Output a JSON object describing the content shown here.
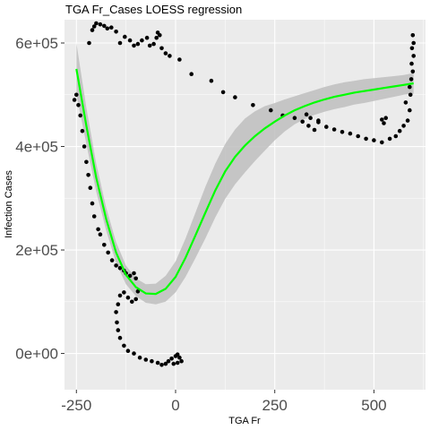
{
  "chart_data": {
    "type": "scatter",
    "title": "TGA Fr_Cases LOESS regression",
    "xlabel": "TGA Fr",
    "ylabel": "Infection Cases",
    "xlim": [
      -280,
      630
    ],
    "ylim": [
      -70000,
      645000
    ],
    "x_ticks": [
      -250,
      0,
      250,
      500
    ],
    "x_tick_labels": [
      "-250",
      "0",
      "250",
      "500"
    ],
    "y_ticks": [
      0,
      200000,
      400000,
      600000
    ],
    "y_tick_labels": [
      "0e+00",
      "2e+05",
      "4e+05",
      "6e+05"
    ],
    "grid": true,
    "colors": {
      "panel": "#ebebeb",
      "grid": "#ffffff",
      "points": "#000000",
      "fit": "#00ff00",
      "band": "#bebebe"
    },
    "points": [
      [
        -218,
        600000
      ],
      [
        -210,
        625000
      ],
      [
        -205,
        632000
      ],
      [
        -200,
        638000
      ],
      [
        -190,
        636000
      ],
      [
        -180,
        633000
      ],
      [
        -172,
        628000
      ],
      [
        -162,
        630000
      ],
      [
        -150,
        622000
      ],
      [
        -140,
        600000
      ],
      [
        -128,
        612000
      ],
      [
        -115,
        605000
      ],
      [
        -105,
        595000
      ],
      [
        -95,
        598000
      ],
      [
        -85,
        605000
      ],
      [
        -72,
        610000
      ],
      [
        -65,
        595000
      ],
      [
        -55,
        598000
      ],
      [
        -48,
        610000
      ],
      [
        -45,
        620000
      ],
      [
        -40,
        615000
      ],
      [
        -35,
        590000
      ],
      [
        -25,
        580000
      ],
      [
        -15,
        575000
      ],
      [
        10,
        568000
      ],
      [
        40,
        540000
      ],
      [
        90,
        527000
      ],
      [
        120,
        505000
      ],
      [
        150,
        495000
      ],
      [
        195,
        480000
      ],
      [
        240,
        470000
      ],
      [
        270,
        460000
      ],
      [
        300,
        455000
      ],
      [
        320,
        448000
      ],
      [
        335,
        440000
      ],
      [
        350,
        432000
      ],
      [
        360,
        450000
      ],
      [
        380,
        438000
      ],
      [
        400,
        433000
      ],
      [
        420,
        428000
      ],
      [
        440,
        425000
      ],
      [
        460,
        420000
      ],
      [
        480,
        415000
      ],
      [
        500,
        412000
      ],
      [
        520,
        408000
      ],
      [
        540,
        415000
      ],
      [
        555,
        420000
      ],
      [
        565,
        430000
      ],
      [
        575,
        440000
      ],
      [
        585,
        450000
      ],
      [
        590,
        470000
      ],
      [
        592,
        500000
      ],
      [
        594,
        530000
      ],
      [
        595,
        560000
      ],
      [
        596,
        590000
      ],
      [
        598,
        615000
      ],
      [
        600,
        600000
      ],
      [
        600,
        575000
      ],
      [
        598,
        545000
      ],
      [
        590,
        515000
      ],
      [
        580,
        485000
      ],
      [
        530,
        455000
      ],
      [
        525,
        445000
      ],
      [
        520,
        452000
      ],
      [
        330,
        462000
      ],
      [
        340,
        455000
      ],
      [
        360,
        447000
      ],
      [
        -255,
        490000
      ],
      [
        -250,
        500000
      ],
      [
        -245,
        480000
      ],
      [
        -240,
        460000
      ],
      [
        -235,
        430000
      ],
      [
        -230,
        400000
      ],
      [
        -225,
        370000
      ],
      [
        -220,
        345000
      ],
      [
        -215,
        320000
      ],
      [
        -210,
        290000
      ],
      [
        -205,
        265000
      ],
      [
        -195,
        240000
      ],
      [
        -190,
        230000
      ],
      [
        -180,
        210000
      ],
      [
        -170,
        195000
      ],
      [
        -160,
        180000
      ],
      [
        -150,
        170000
      ],
      [
        -140,
        165000
      ],
      [
        -130,
        160000
      ],
      [
        -125,
        155000
      ],
      [
        -115,
        150000
      ],
      [
        -105,
        155000
      ],
      [
        -100,
        145000
      ],
      [
        -95,
        120000
      ],
      [
        -100,
        105000
      ],
      [
        -110,
        100000
      ],
      [
        -120,
        108000
      ],
      [
        -130,
        118000
      ],
      [
        -140,
        112000
      ],
      [
        -145,
        95000
      ],
      [
        -150,
        80000
      ],
      [
        -148,
        60000
      ],
      [
        -145,
        45000
      ],
      [
        -140,
        30000
      ],
      [
        -130,
        15000
      ],
      [
        -120,
        5000
      ],
      [
        -105,
        0
      ],
      [
        -90,
        -8000
      ],
      [
        -75,
        -12000
      ],
      [
        -60,
        -15000
      ],
      [
        -45,
        -18000
      ],
      [
        -35,
        -22000
      ],
      [
        -25,
        -20000
      ],
      [
        -18,
        -15000
      ],
      [
        -10,
        -10000
      ],
      [
        0,
        -5000
      ],
      [
        5,
        -2000
      ],
      [
        10,
        -8000
      ],
      [
        15,
        -15000
      ],
      [
        5,
        -18000
      ],
      [
        -5,
        -20000
      ]
    ],
    "fit": [
      [
        -250,
        550000
      ],
      [
        -225,
        440000
      ],
      [
        -200,
        340000
      ],
      [
        -175,
        260000
      ],
      [
        -150,
        195000
      ],
      [
        -125,
        152000
      ],
      [
        -100,
        128000
      ],
      [
        -75,
        116000
      ],
      [
        -50,
        115000
      ],
      [
        -25,
        125000
      ],
      [
        0,
        148000
      ],
      [
        25,
        185000
      ],
      [
        50,
        228000
      ],
      [
        75,
        272000
      ],
      [
        100,
        315000
      ],
      [
        125,
        352000
      ],
      [
        150,
        380000
      ],
      [
        175,
        402000
      ],
      [
        200,
        420000
      ],
      [
        225,
        435000
      ],
      [
        250,
        448000
      ],
      [
        275,
        460000
      ],
      [
        300,
        470000
      ],
      [
        325,
        478000
      ],
      [
        350,
        485000
      ],
      [
        375,
        491000
      ],
      [
        400,
        496000
      ],
      [
        425,
        500000
      ],
      [
        450,
        504000
      ],
      [
        475,
        507000
      ],
      [
        500,
        510000
      ],
      [
        525,
        513000
      ],
      [
        550,
        516000
      ],
      [
        575,
        519000
      ],
      [
        600,
        522000
      ]
    ],
    "band_upper": [
      [
        -250,
        600000
      ],
      [
        -225,
        475000
      ],
      [
        -200,
        367000
      ],
      [
        -175,
        282000
      ],
      [
        -150,
        215000
      ],
      [
        -125,
        170000
      ],
      [
        -100,
        145000
      ],
      [
        -75,
        134000
      ],
      [
        -50,
        135000
      ],
      [
        -25,
        150000
      ],
      [
        0,
        178000
      ],
      [
        25,
        222000
      ],
      [
        50,
        272000
      ],
      [
        75,
        322000
      ],
      [
        100,
        367000
      ],
      [
        125,
        405000
      ],
      [
        150,
        433000
      ],
      [
        175,
        454000
      ],
      [
        200,
        468000
      ],
      [
        225,
        478000
      ],
      [
        250,
        484000
      ],
      [
        275,
        491000
      ],
      [
        300,
        497000
      ],
      [
        325,
        503000
      ],
      [
        350,
        509000
      ],
      [
        375,
        515000
      ],
      [
        400,
        520000
      ],
      [
        425,
        524000
      ],
      [
        450,
        527000
      ],
      [
        475,
        530000
      ],
      [
        500,
        532000
      ],
      [
        525,
        534000
      ],
      [
        550,
        536000
      ],
      [
        575,
        538000
      ],
      [
        600,
        542000
      ]
    ],
    "band_lower": [
      [
        -250,
        500000
      ],
      [
        -225,
        405000
      ],
      [
        -200,
        313000
      ],
      [
        -175,
        238000
      ],
      [
        -150,
        175000
      ],
      [
        -125,
        134000
      ],
      [
        -100,
        111000
      ],
      [
        -75,
        98000
      ],
      [
        -50,
        95000
      ],
      [
        -25,
        100000
      ],
      [
        0,
        118000
      ],
      [
        25,
        148000
      ],
      [
        50,
        184000
      ],
      [
        75,
        222000
      ],
      [
        100,
        263000
      ],
      [
        125,
        299000
      ],
      [
        150,
        327000
      ],
      [
        175,
        350000
      ],
      [
        200,
        372000
      ],
      [
        225,
        392000
      ],
      [
        250,
        412000
      ],
      [
        275,
        429000
      ],
      [
        300,
        443000
      ],
      [
        325,
        453000
      ],
      [
        350,
        461000
      ],
      [
        375,
        467000
      ],
      [
        400,
        472000
      ],
      [
        425,
        476000
      ],
      [
        450,
        481000
      ],
      [
        475,
        484000
      ],
      [
        500,
        488000
      ],
      [
        525,
        492000
      ],
      [
        550,
        496000
      ],
      [
        575,
        500000
      ],
      [
        600,
        502000
      ]
    ]
  }
}
